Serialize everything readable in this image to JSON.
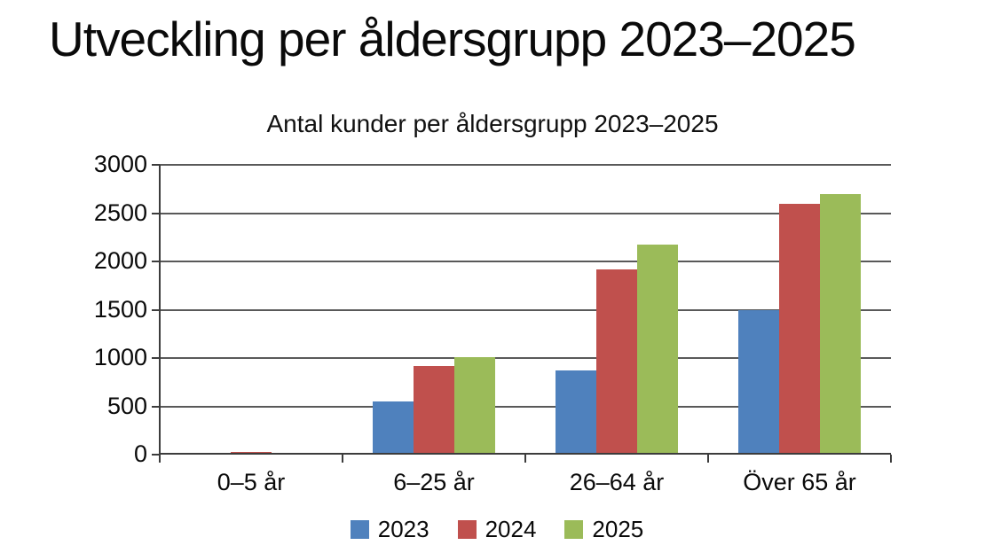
{
  "page": {
    "title": "Utveckling per åldersgrupp 2023–2025"
  },
  "chart_data": {
    "type": "bar",
    "title": "Antal kunder per åldersgrupp 2023–2025",
    "categories": [
      "0–5 år",
      "6–25 år",
      "26–64 år",
      "Över 65 år"
    ],
    "series": [
      {
        "name": "2023",
        "color": "#4F81BD",
        "values": [
          15,
          550,
          870,
          1500
        ]
      },
      {
        "name": "2024",
        "color": "#C0504D",
        "values": [
          30,
          920,
          1920,
          2600
        ]
      },
      {
        "name": "2025",
        "color": "#9BBB59",
        "values": [
          10,
          1010,
          2170,
          2700
        ]
      }
    ],
    "xlabel": "",
    "ylabel": "",
    "ylim": [
      0,
      3000
    ],
    "yticks": [
      "0",
      "500",
      "1000",
      "1500",
      "2000",
      "2500",
      "3000"
    ],
    "grid": true,
    "legend_position": "bottom"
  }
}
